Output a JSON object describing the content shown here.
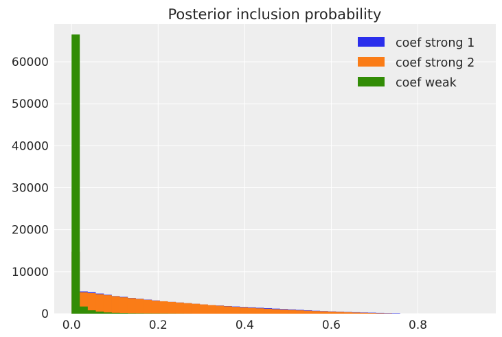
{
  "chart_data": {
    "type": "bar",
    "title": "Posterior inclusion probability",
    "xlabel": "",
    "ylabel": "",
    "xlim": [
      -0.04,
      0.98
    ],
    "ylim": [
      0,
      69000
    ],
    "xticks": [
      0.0,
      0.2,
      0.4,
      0.6,
      0.8
    ],
    "xtick_labels": [
      "0.0",
      "0.2",
      "0.4",
      "0.6",
      "0.8"
    ],
    "yticks": [
      0,
      10000,
      20000,
      30000,
      40000,
      50000,
      60000
    ],
    "ytick_labels": [
      "0",
      "10000",
      "20000",
      "30000",
      "40000",
      "50000",
      "60000"
    ],
    "grid": true,
    "legend_position": "top-right",
    "series": [
      {
        "name": "coef strong 1",
        "color": "#2a2eec",
        "bin_start": 0.0,
        "bin_width": 0.0185,
        "values": [
          14700,
          5300,
          5100,
          4800,
          4500,
          4200,
          4000,
          3750,
          3550,
          3350,
          3150,
          2950,
          2800,
          2650,
          2500,
          2350,
          2200,
          2050,
          1950,
          1800,
          1700,
          1600,
          1500,
          1400,
          1300,
          1200,
          1100,
          1000,
          900,
          800,
          700,
          620,
          540,
          470,
          400,
          340,
          280,
          230,
          180,
          130,
          90
        ]
      },
      {
        "name": "coef strong 2",
        "color": "#fa7c17",
        "bin_start": 0.0,
        "bin_width": 0.0185,
        "values": [
          14800,
          5100,
          4900,
          4650,
          4400,
          4150,
          3900,
          3700,
          3500,
          3300,
          3100,
          2950,
          2800,
          2650,
          2500,
          2350,
          2200,
          2050,
          1900,
          1750,
          1620,
          1500,
          1380,
          1270,
          1170,
          1070,
          970,
          880,
          790,
          710,
          630,
          560,
          490,
          420,
          350,
          280,
          210,
          150,
          100,
          60
        ]
      },
      {
        "name": "coef weak",
        "color": "#328c06",
        "bin_start": 0.0,
        "bin_width": 0.0185,
        "values": [
          66500,
          1700,
          800,
          500,
          300,
          200,
          150,
          100,
          80,
          60,
          50,
          40,
          30,
          20,
          10
        ]
      }
    ]
  }
}
